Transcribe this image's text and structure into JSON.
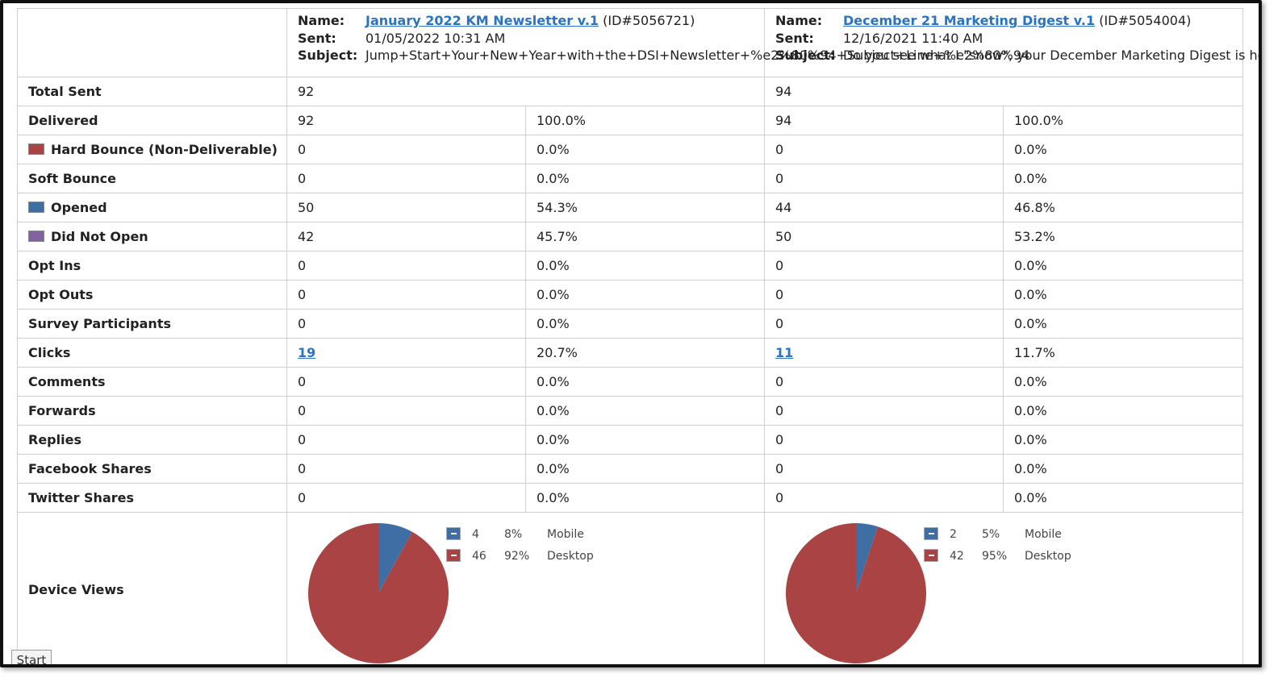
{
  "campaigns": [
    {
      "name_label": "Name:",
      "name": "January 2022 KM Newsletter v.1",
      "id_text": "(ID#5056721)",
      "sent_label": "Sent:",
      "sent": "01/05/2022 10:31 AM",
      "subject_label": "Subject:",
      "subject": "Jump+Start+Your+New+Year+with+the+DSI+Newsletter+%e2%80%94+Subject+Line+%e2%80%94"
    },
    {
      "name_label": "Name:",
      "name": "December 21 Marketing Digest v.1",
      "id_text": "(ID#5054004)",
      "sent_label": "Sent:",
      "sent": "12/16/2021 11:40 AM",
      "subject_label": "Subject:",
      "subject": "Do you see what I \"snow\", your December Marketing Digest is here!"
    }
  ],
  "rows": [
    {
      "label": "Total Sent",
      "a_value": "92",
      "a_pct": "",
      "b_value": "94",
      "b_pct": "",
      "merged": true
    },
    {
      "label": "Delivered",
      "a_value": "92",
      "a_pct": "100.0%",
      "b_value": "94",
      "b_pct": "100.0%"
    },
    {
      "label": "Hard Bounce (Non-Deliverable)",
      "swatch": "#aa4444",
      "a_value": "0",
      "a_pct": "0.0%",
      "b_value": "0",
      "b_pct": "0.0%"
    },
    {
      "label": "Soft Bounce",
      "a_value": "0",
      "a_pct": "0.0%",
      "b_value": "0",
      "b_pct": "0.0%"
    },
    {
      "label": "Opened",
      "swatch": "#3f6ea5",
      "a_value": "50",
      "a_pct": "54.3%",
      "b_value": "44",
      "b_pct": "46.8%"
    },
    {
      "label": "Did Not Open",
      "swatch": "#8064a2",
      "a_value": "42",
      "a_pct": "45.7%",
      "b_value": "50",
      "b_pct": "53.2%"
    },
    {
      "label": "Opt Ins",
      "a_value": "0",
      "a_pct": "0.0%",
      "b_value": "0",
      "b_pct": "0.0%"
    },
    {
      "label": "Opt Outs",
      "a_value": "0",
      "a_pct": "0.0%",
      "b_value": "0",
      "b_pct": "0.0%"
    },
    {
      "label": "Survey Participants",
      "a_value": "0",
      "a_pct": "0.0%",
      "b_value": "0",
      "b_pct": "0.0%"
    },
    {
      "label": "Clicks",
      "a_value": "19",
      "a_pct": "20.7%",
      "b_value": "11",
      "b_pct": "11.7%",
      "link": true
    },
    {
      "label": "Comments",
      "a_value": "0",
      "a_pct": "0.0%",
      "b_value": "0",
      "b_pct": "0.0%"
    },
    {
      "label": "Forwards",
      "a_value": "0",
      "a_pct": "0.0%",
      "b_value": "0",
      "b_pct": "0.0%"
    },
    {
      "label": "Replies",
      "a_value": "0",
      "a_pct": "0.0%",
      "b_value": "0",
      "b_pct": "0.0%"
    },
    {
      "label": "Facebook Shares",
      "a_value": "0",
      "a_pct": "0.0%",
      "b_value": "0",
      "b_pct": "0.0%"
    },
    {
      "label": "Twitter Shares",
      "a_value": "0",
      "a_pct": "0.0%",
      "b_value": "0",
      "b_pct": "0.0%"
    }
  ],
  "device_views_label": "Device Views",
  "colors": {
    "mobile": "#3f6ea5",
    "desktop": "#aa4444"
  },
  "chart_data": [
    {
      "type": "pie",
      "slices": [
        {
          "name": "Mobile",
          "count": "4",
          "pct_label": "8%",
          "value": 8
        },
        {
          "name": "Desktop",
          "count": "46",
          "pct_label": "92%",
          "value": 92
        }
      ]
    },
    {
      "type": "pie",
      "slices": [
        {
          "name": "Mobile",
          "count": "2",
          "pct_label": "5%",
          "value": 5
        },
        {
          "name": "Desktop",
          "count": "42",
          "pct_label": "95%",
          "value": 95
        }
      ]
    }
  ],
  "start_label": "Start"
}
